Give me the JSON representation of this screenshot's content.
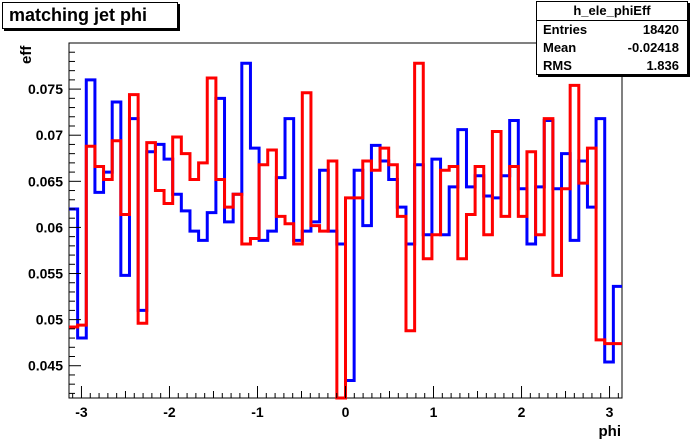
{
  "title": "matching jet phi",
  "stats": {
    "name": "h_ele_phiEff",
    "rows": [
      {
        "label": "Entries",
        "value": "18420"
      },
      {
        "label": "Mean",
        "value": "-0.02418"
      },
      {
        "label": "RMS",
        "value": "1.836"
      }
    ]
  },
  "chart_data": {
    "type": "line",
    "title": "matching jet phi",
    "xlabel": "phi",
    "ylabel": "eff",
    "xlim": [
      -3.1416,
      3.1416
    ],
    "ylim": [
      0.0415,
      0.08
    ],
    "xticks": [
      -3,
      -2,
      -1,
      0,
      1,
      2,
      3
    ],
    "xtick_labels": [
      "-3",
      "-2",
      "-1",
      "0",
      "1",
      "2",
      "3"
    ],
    "yticks": [
      0.045,
      0.05,
      0.055,
      0.06,
      0.065,
      0.07,
      0.075
    ],
    "ytick_labels": [
      "0.045",
      "0.05",
      "0.055",
      "0.06",
      "0.065",
      "0.07",
      "0.075"
    ],
    "grid": false,
    "bins": 64,
    "series": [
      {
        "color": "#0000ff",
        "values": [
          0.062,
          0.048,
          0.076,
          0.0638,
          0.066,
          0.0736,
          0.0548,
          0.0718,
          0.051,
          0.0682,
          0.069,
          0.0674,
          0.0636,
          0.0618,
          0.0596,
          0.0586,
          0.0616,
          0.074,
          0.0606,
          0.0636,
          0.0778,
          0.0686,
          0.0586,
          0.0596,
          0.0654,
          0.0718,
          0.0586,
          0.0596,
          0.0606,
          0.0662,
          0.0596,
          0.0582,
          0.0434,
          0.0662,
          0.0602,
          0.0689,
          0.0672,
          0.0652,
          0.0622,
          0.0582,
          0.0668,
          0.0592,
          0.0674,
          0.0592,
          0.0644,
          0.0706,
          0.0644,
          0.0656,
          0.0634,
          0.0632,
          0.0656,
          0.0716,
          0.0642,
          0.0582,
          0.0644,
          0.0716,
          0.0642,
          0.068,
          0.0586,
          0.0672,
          0.0622,
          0.0718,
          0.0454,
          0.0536
        ]
      },
      {
        "color": "#ff0000",
        "values": [
          0.0492,
          0.0494,
          0.0688,
          0.0666,
          0.0652,
          0.0694,
          0.0614,
          0.0744,
          0.0496,
          0.0692,
          0.064,
          0.0626,
          0.0698,
          0.068,
          0.0652,
          0.067,
          0.0762,
          0.0652,
          0.0622,
          0.0636,
          0.0582,
          0.0588,
          0.0668,
          0.0684,
          0.0612,
          0.0604,
          0.0582,
          0.0746,
          0.0602,
          0.0596,
          0.0672,
          0.0414,
          0.0632,
          0.0632,
          0.0672,
          0.0662,
          0.0686,
          0.0668,
          0.0612,
          0.0488,
          0.0778,
          0.0566,
          0.0592,
          0.0662,
          0.0666,
          0.0566,
          0.0614,
          0.0666,
          0.0592,
          0.0704,
          0.0612,
          0.0666,
          0.0612,
          0.0682,
          0.0592,
          0.0718,
          0.0548,
          0.0642,
          0.0754,
          0.0648,
          0.0686,
          0.0478,
          0.0474,
          0.0474
        ]
      }
    ]
  }
}
